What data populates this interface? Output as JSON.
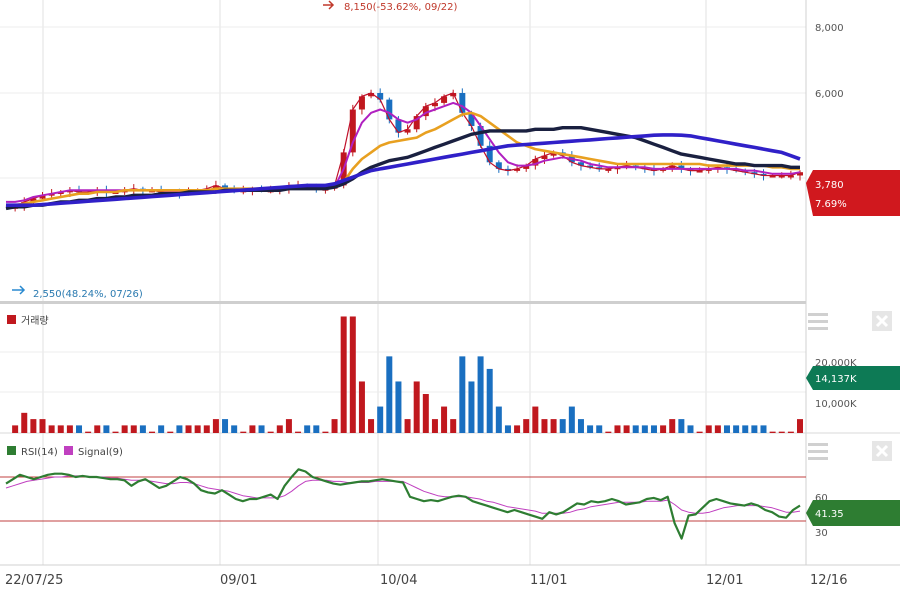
{
  "chart_data": [
    {
      "type": "candlestick",
      "panel": "price",
      "yaxis_ticks": [
        "8,000",
        "6,000"
      ],
      "ylim": [
        2400,
        8600
      ],
      "x_tick_labels": [
        "22/07/25",
        "09/01",
        "10/04",
        "11/01",
        "12/01",
        "12/16"
      ],
      "annotations": {
        "high": "8,150(-53.62%, 09/22)",
        "low": "2,550(48.24%, 07/26)"
      },
      "current": {
        "price": "3,780",
        "change": "7.69%"
      },
      "moving_averages": [
        {
          "color": "#c0102a",
          "values": [
            2500,
            2550,
            2700,
            2800,
            2900,
            2950,
            3000,
            3050,
            3000,
            3000,
            3050,
            3000,
            3000,
            3050,
            3100,
            3050,
            3050,
            3000,
            3000,
            2950,
            3000,
            3050,
            3100,
            3200,
            3100,
            3050,
            3050,
            3100,
            3050,
            3050,
            3100,
            3200,
            3200,
            3150,
            3100,
            3100,
            3200,
            4200,
            5500,
            5900,
            6000,
            5800,
            5200,
            4800,
            4900,
            5300,
            5600,
            5700,
            5900,
            6000,
            5400,
            5000,
            4400,
            3900,
            3700,
            3650,
            3700,
            3800,
            4000,
            4100,
            4200,
            4100,
            3900,
            3800,
            3750,
            3700,
            3700,
            3750,
            3800,
            3750,
            3700,
            3650,
            3700,
            3800,
            3700,
            3650,
            3650,
            3700,
            3750,
            3700,
            3650,
            3600,
            3550,
            3500,
            3500,
            3500,
            3500,
            3600
          ]
        },
        {
          "color": "#b020c0",
          "values": [
            2700,
            2700,
            2750,
            2850,
            2900,
            2950,
            3000,
            3050,
            3050,
            3050,
            3050,
            3050,
            3050,
            3050,
            3050,
            3050,
            3050,
            3050,
            3000,
            3000,
            3000,
            3050,
            3050,
            3100,
            3100,
            3100,
            3100,
            3100,
            3100,
            3100,
            3100,
            3150,
            3150,
            3150,
            3150,
            3100,
            3150,
            3700,
            4500,
            5100,
            5400,
            5500,
            5400,
            5200,
            5100,
            5200,
            5400,
            5500,
            5600,
            5700,
            5600,
            5400,
            5000,
            4600,
            4200,
            3900,
            3800,
            3800,
            3850,
            3950,
            4000,
            4050,
            4000,
            3950,
            3850,
            3800,
            3750,
            3750,
            3750,
            3750,
            3750,
            3700,
            3700,
            3700,
            3700,
            3700,
            3700,
            3700,
            3700,
            3700,
            3700,
            3650,
            3650,
            3600,
            3550,
            3550,
            3550,
            3600
          ]
        },
        {
          "color": "#e8a020",
          "values": [
            2550,
            2600,
            2650,
            2700,
            2750,
            2800,
            2850,
            2900,
            2950,
            2950,
            3000,
            3000,
            3000,
            3050,
            3050,
            3050,
            3050,
            3050,
            3050,
            3050,
            3050,
            3050,
            3050,
            3100,
            3100,
            3100,
            3100,
            3100,
            3100,
            3100,
            3100,
            3100,
            3150,
            3150,
            3150,
            3150,
            3150,
            3300,
            3700,
            4000,
            4200,
            4400,
            4500,
            4550,
            4600,
            4650,
            4800,
            4900,
            5050,
            5200,
            5350,
            5400,
            5300,
            5100,
            4900,
            4700,
            4500,
            4400,
            4300,
            4250,
            4200,
            4150,
            4100,
            4050,
            4000,
            3950,
            3900,
            3850,
            3850,
            3850,
            3850,
            3850,
            3850,
            3850,
            3850,
            3850,
            3850,
            3800,
            3800,
            3800,
            3800,
            3800,
            3800,
            3800,
            3750,
            3750,
            3700,
            3700
          ]
        },
        {
          "color": "#1a2040",
          "values": [
            2500,
            2550,
            2550,
            2600,
            2600,
            2650,
            2700,
            2700,
            2750,
            2750,
            2800,
            2800,
            2850,
            2850,
            2900,
            2900,
            2900,
            2950,
            2950,
            2950,
            3000,
            3000,
            3000,
            3000,
            3050,
            3050,
            3050,
            3050,
            3050,
            3050,
            3050,
            3100,
            3100,
            3100,
            3100,
            3100,
            3150,
            3250,
            3400,
            3600,
            3750,
            3850,
            3950,
            4000,
            4050,
            4150,
            4250,
            4350,
            4450,
            4550,
            4650,
            4750,
            4800,
            4850,
            4850,
            4850,
            4850,
            4850,
            4900,
            4900,
            4900,
            4950,
            4950,
            4950,
            4900,
            4850,
            4800,
            4750,
            4700,
            4650,
            4550,
            4450,
            4350,
            4250,
            4150,
            4100,
            4050,
            4000,
            3950,
            3900,
            3850,
            3850,
            3800,
            3800,
            3800,
            3800,
            3750,
            3750
          ]
        },
        {
          "color": "#3020c8",
          "values": [
            2600,
            2600,
            2600,
            2600,
            2620,
            2640,
            2660,
            2680,
            2700,
            2720,
            2740,
            2760,
            2780,
            2800,
            2820,
            2840,
            2860,
            2880,
            2900,
            2920,
            2940,
            2960,
            2980,
            3000,
            3020,
            3040,
            3060,
            3080,
            3100,
            3120,
            3140,
            3160,
            3180,
            3200,
            3200,
            3200,
            3250,
            3350,
            3450,
            3550,
            3650,
            3700,
            3750,
            3800,
            3850,
            3900,
            3950,
            4000,
            4050,
            4100,
            4150,
            4200,
            4250,
            4300,
            4350,
            4400,
            4420,
            4440,
            4460,
            4480,
            4500,
            4520,
            4540,
            4560,
            4580,
            4600,
            4620,
            4640,
            4660,
            4680,
            4700,
            4720,
            4730,
            4730,
            4720,
            4700,
            4650,
            4600,
            4550,
            4500,
            4450,
            4400,
            4350,
            4300,
            4250,
            4200,
            4100,
            4000
          ]
        }
      ]
    },
    {
      "type": "bar",
      "panel": "volume",
      "legend": "거래량",
      "yaxis_ticks": [
        "20,000K",
        "10,000K"
      ],
      "ylim": [
        0,
        27000
      ],
      "current": "14,137K"
    },
    {
      "type": "line",
      "panel": "rsi",
      "legend": [
        "RSI(14)",
        "Signal(9)"
      ],
      "yaxis_ticks": [
        "60",
        "30"
      ],
      "ylim": [
        20,
        90
      ],
      "levels": [
        70,
        30
      ],
      "current": "41.35",
      "series": [
        {
          "name": "RSI(14)",
          "color": "#2e7d32",
          "values": [
            64,
            68,
            72,
            70,
            68,
            70,
            72,
            73,
            73,
            72,
            70,
            71,
            70,
            70,
            69,
            68,
            68,
            67,
            62,
            66,
            68,
            64,
            60,
            62,
            66,
            70,
            68,
            64,
            58,
            56,
            55,
            58,
            54,
            50,
            48,
            50,
            50,
            52,
            54,
            50,
            62,
            70,
            77,
            75,
            70,
            68,
            66,
            64,
            63,
            64,
            65,
            66,
            66,
            67,
            68,
            67,
            66,
            65,
            52,
            50,
            48,
            49,
            48,
            50,
            52,
            53,
            52,
            48,
            46,
            44,
            42,
            40,
            38,
            40,
            38,
            36,
            34,
            32,
            38,
            36,
            38,
            42,
            46,
            45,
            48,
            47,
            48,
            50,
            48,
            45,
            46,
            47,
            50,
            51,
            49,
            52,
            28,
            14,
            35,
            36,
            42,
            48,
            50,
            48,
            46,
            45,
            44,
            46,
            44,
            40,
            38,
            34,
            33,
            40,
            44
          ]
        },
        {
          "name": "Signal(9)",
          "color": "#c040c0",
          "values": [
            60,
            62,
            64,
            66,
            67,
            68,
            69,
            70,
            70,
            71,
            71,
            71,
            70,
            70,
            70,
            69,
            69,
            68,
            67,
            67,
            67,
            66,
            65,
            64,
            64,
            65,
            65,
            64,
            62,
            60,
            59,
            58,
            57,
            55,
            53,
            52,
            51,
            51,
            51,
            51,
            53,
            57,
            62,
            66,
            67,
            67,
            67,
            66,
            66,
            65,
            65,
            65,
            65,
            66,
            66,
            66,
            66,
            66,
            63,
            60,
            57,
            55,
            53,
            52,
            52,
            52,
            52,
            51,
            50,
            48,
            47,
            45,
            43,
            42,
            41,
            40,
            39,
            37,
            37,
            37,
            37,
            38,
            40,
            41,
            43,
            44,
            45,
            46,
            47,
            47,
            47,
            47,
            48,
            48,
            48,
            49,
            45,
            40,
            38,
            37,
            37,
            38,
            40,
            42,
            43,
            44,
            44,
            44,
            44,
            43,
            42,
            40,
            38,
            38,
            39
          ]
        }
      ]
    }
  ]
}
